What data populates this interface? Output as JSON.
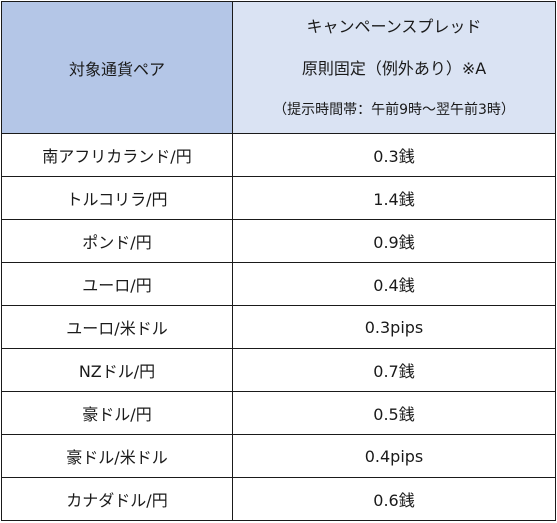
{
  "table": {
    "header": {
      "pair_label": "対象通貨ペア",
      "spread_line1": "キャンペーンスプレッド",
      "spread_line2": "原則固定（例外あり）※A",
      "spread_line3": "（提示時間帯：午前9時～翌午前3時）"
    },
    "rows": [
      {
        "pair": "南アフリカランド/円",
        "spread": "0.3銭"
      },
      {
        "pair": "トルコリラ/円",
        "spread": "1.4銭"
      },
      {
        "pair": "ポンド/円",
        "spread": "0.9銭"
      },
      {
        "pair": "ユーロ/円",
        "spread": "0.4銭"
      },
      {
        "pair": "ユーロ/米ドル",
        "spread": "0.3pips"
      },
      {
        "pair": "NZドル/円",
        "spread": "0.7銭"
      },
      {
        "pair": "豪ドル/円",
        "spread": "0.5銭"
      },
      {
        "pair": "豪ドル/米ドル",
        "spread": "0.4pips"
      },
      {
        "pair": "カナダドル/円",
        "spread": "0.6銭"
      }
    ],
    "colors": {
      "header_left_bg": "#b4c6e7",
      "header_right_bg": "#dae3f3",
      "border": "#1a1a1a"
    }
  }
}
